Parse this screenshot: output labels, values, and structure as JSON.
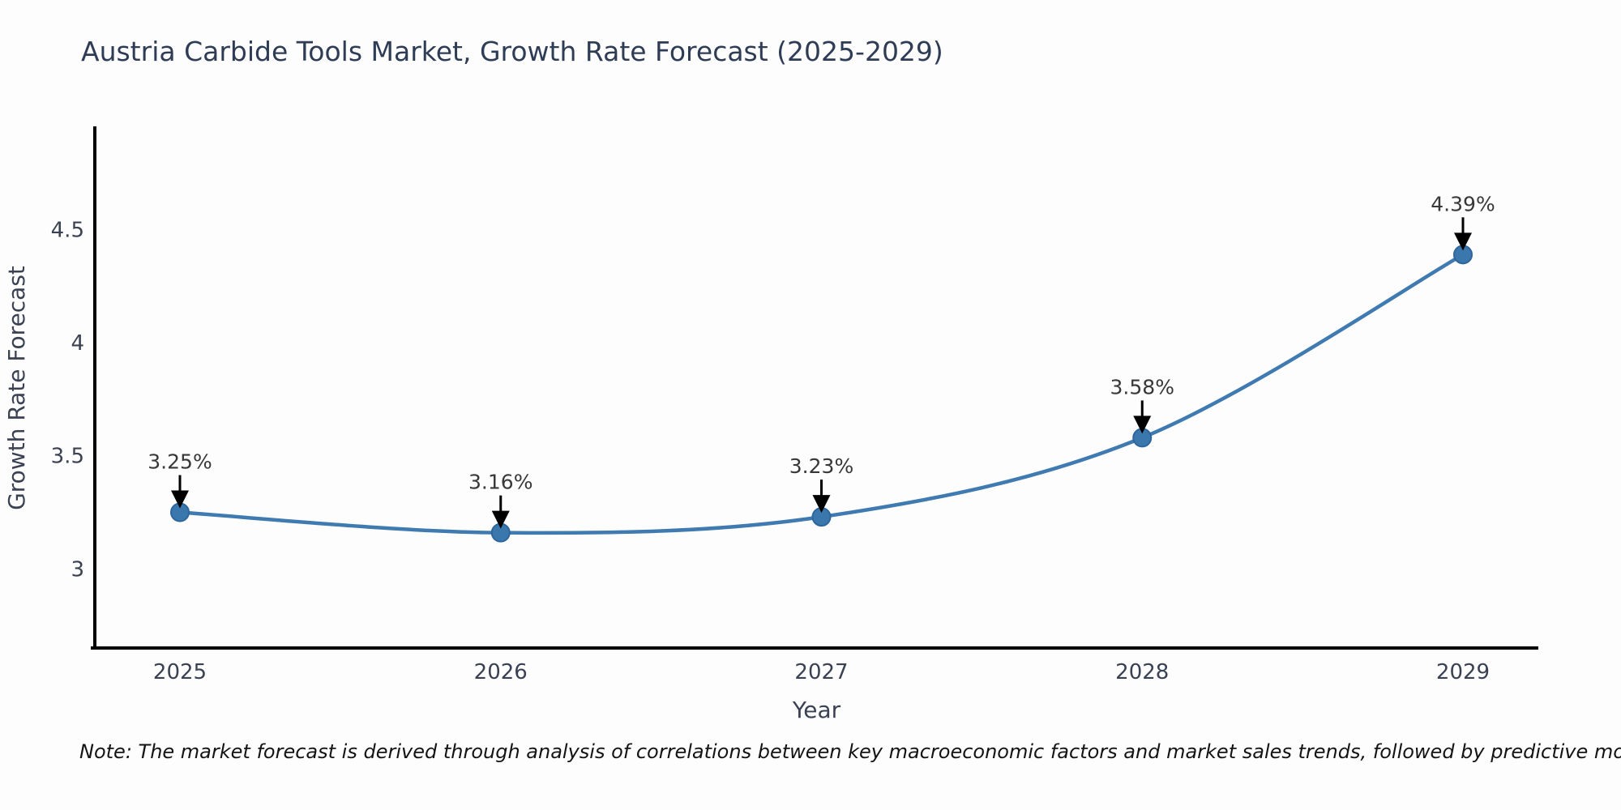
{
  "note": "Note: The market forecast is derived through analysis of correlations between key macroeconomic factors and market sales trends, followed by predictive modeling to project future sales",
  "chart_data": {
    "type": "line",
    "title": "Austria Carbide Tools Market, Growth Rate Forecast (2025-2029)",
    "x": [
      2025,
      2026,
      2027,
      2028,
      2029
    ],
    "values": [
      3.25,
      3.16,
      3.23,
      3.58,
      4.39
    ],
    "point_labels": [
      "3.25%",
      "3.16%",
      "3.23%",
      "3.58%",
      "4.39%"
    ],
    "xlabel": "Year",
    "ylabel": "Growth Rate Forecast",
    "yticks": [
      3,
      3.5,
      4,
      4.5
    ],
    "ylim": [
      2.65,
      4.95
    ],
    "grid": false,
    "legend": null,
    "colors": {
      "line": "#3f7ab0",
      "marker_fill": "#3a77ad",
      "marker_edge": "#2d669c",
      "axis": "#000000",
      "annotation_arrow": "#000000",
      "title_text": "#2e3c55",
      "tick_text": "#3a4152",
      "background": "#fdfdfd"
    }
  }
}
